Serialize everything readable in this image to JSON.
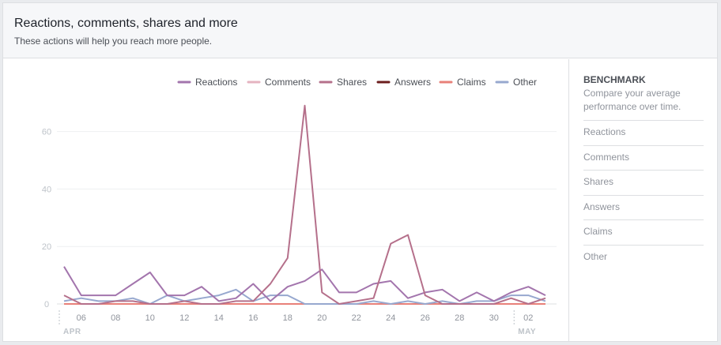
{
  "header": {
    "title": "Reactions, comments, shares and more",
    "subtitle": "These actions will help you reach more people."
  },
  "benchmark": {
    "title": "BENCHMARK",
    "description": "Compare your average performance over time.",
    "items": [
      "Reactions",
      "Comments",
      "Shares",
      "Answers",
      "Claims",
      "Other"
    ]
  },
  "chart_data": {
    "type": "line",
    "title": "",
    "xlabel": "",
    "ylabel": "",
    "x": [
      "Apr 5",
      "Apr 6",
      "Apr 7",
      "Apr 8",
      "Apr 9",
      "Apr 10",
      "Apr 11",
      "Apr 12",
      "Apr 13",
      "Apr 14",
      "Apr 15",
      "Apr 16",
      "Apr 17",
      "Apr 18",
      "Apr 19",
      "Apr 20",
      "Apr 21",
      "Apr 22",
      "Apr 23",
      "Apr 24",
      "Apr 25",
      "Apr 26",
      "Apr 27",
      "Apr 28",
      "Apr 29",
      "Apr 30",
      "May 1",
      "May 2",
      "May 3"
    ],
    "x_ticks": [
      "06",
      "08",
      "10",
      "12",
      "14",
      "16",
      "18",
      "20",
      "22",
      "24",
      "26",
      "28",
      "30",
      "02"
    ],
    "month_labels": [
      "APR",
      "MAY"
    ],
    "y_ticks": [
      0,
      20,
      40,
      60
    ],
    "ylim": [
      0,
      70
    ],
    "grid": true,
    "legend_position": "top-right",
    "series": [
      {
        "name": "Reactions",
        "color": "#a375ad",
        "values": [
          13,
          3,
          3,
          3,
          7,
          11,
          3,
          3,
          6,
          1,
          2,
          7,
          1,
          6,
          8,
          12,
          4,
          4,
          7,
          8,
          2,
          4,
          5,
          1,
          4,
          1,
          4,
          6,
          3
        ]
      },
      {
        "name": "Comments",
        "color": "#e5b3c0",
        "values": [
          0,
          0,
          0,
          0,
          0,
          0,
          0,
          0,
          0,
          0,
          0,
          0,
          0,
          0,
          0,
          0,
          0,
          0,
          0,
          0,
          0,
          0,
          0,
          0,
          0,
          0,
          0,
          0,
          0
        ]
      },
      {
        "name": "Shares",
        "color": "#b5708b",
        "values": [
          3,
          0,
          0,
          1,
          1,
          0,
          0,
          1,
          0,
          0,
          1,
          1,
          7,
          16,
          69,
          4,
          0,
          1,
          2,
          21,
          24,
          3,
          0,
          0,
          0,
          0,
          2,
          0,
          2
        ]
      },
      {
        "name": "Answers",
        "color": "#6b1d1d",
        "values": [
          0,
          0,
          0,
          0,
          0,
          0,
          0,
          0,
          0,
          0,
          0,
          0,
          0,
          0,
          0,
          0,
          0,
          0,
          0,
          0,
          0,
          0,
          0,
          0,
          0,
          0,
          0,
          0,
          0
        ]
      },
      {
        "name": "Claims",
        "color": "#e88079",
        "values": [
          0,
          0,
          0,
          0,
          0,
          0,
          0,
          0,
          0,
          0,
          0,
          0,
          0,
          0,
          0,
          0,
          0,
          0,
          0,
          0,
          0,
          0,
          0,
          0,
          0,
          0,
          0,
          0,
          0
        ]
      },
      {
        "name": "Other",
        "color": "#97a8cf",
        "values": [
          1,
          2,
          1,
          1,
          2,
          0,
          3,
          1,
          2,
          3,
          5,
          1,
          3,
          3,
          0,
          0,
          0,
          0,
          1,
          0,
          1,
          0,
          1,
          0,
          1,
          1,
          3,
          3,
          1
        ]
      }
    ]
  }
}
